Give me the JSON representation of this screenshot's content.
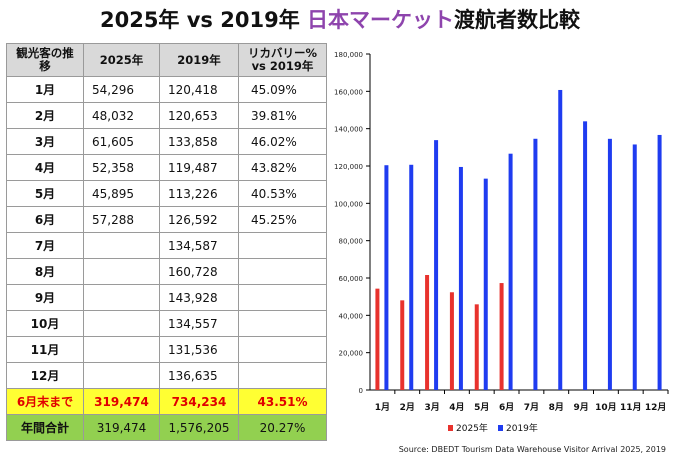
{
  "title": {
    "prefix": "2025年 vs 2019年 ",
    "highlight": "日本マーケット",
    "suffix": "渡航者数比較",
    "highlight_color": "#8e44ad"
  },
  "table": {
    "headers": [
      "観光客の推移",
      "2025年",
      "2019年",
      "リカバリー% vs 2019年"
    ],
    "rows": [
      [
        "1月",
        "54,296",
        "120,418",
        "45.09%"
      ],
      [
        "2月",
        "48,032",
        "120,653",
        "39.81%"
      ],
      [
        "3月",
        "61,605",
        "133,858",
        "46.02%"
      ],
      [
        "4月",
        "52,358",
        "119,487",
        "43.82%"
      ],
      [
        "5月",
        "45,895",
        "113,226",
        "40.53%"
      ],
      [
        "6月",
        "57,288",
        "126,592",
        "45.25%"
      ],
      [
        "7月",
        "",
        "134,587",
        ""
      ],
      [
        "8月",
        "",
        "160,728",
        ""
      ],
      [
        "9月",
        "",
        "143,928",
        ""
      ],
      [
        "10月",
        "",
        "134,557",
        ""
      ],
      [
        "11月",
        "",
        "131,536",
        ""
      ],
      [
        "12月",
        "",
        "136,635",
        ""
      ]
    ],
    "halfyear": [
      "6月末まで",
      "319,474",
      "734,234",
      "43.51%"
    ],
    "total": [
      "年間合計",
      "319,474",
      "1,576,205",
      "20.27%"
    ],
    "colors": {
      "halfyear_bg": "#ffff33",
      "halfyear_text": "#e00000",
      "total_bg": "#92d050",
      "header_bg": "#d9d9d9"
    }
  },
  "chart_data": {
    "type": "bar",
    "categories": [
      "1月",
      "2月",
      "3月",
      "4月",
      "5月",
      "6月",
      "7月",
      "8月",
      "9月",
      "10月",
      "11月",
      "12月"
    ],
    "series": [
      {
        "name": "2025年",
        "color": "#e8322d",
        "values": [
          54296,
          48032,
          61605,
          52358,
          45895,
          57288,
          null,
          null,
          null,
          null,
          null,
          null
        ]
      },
      {
        "name": "2019年",
        "color": "#1f3cf0",
        "values": [
          120418,
          120653,
          133858,
          119487,
          113226,
          126592,
          134587,
          160728,
          143928,
          134557,
          131536,
          136635
        ]
      }
    ],
    "ylim": [
      0,
      180000
    ],
    "yticks": [
      "0",
      "20,000",
      "40,000",
      "60,000",
      "80,000",
      "100,000",
      "120,000",
      "140,000",
      "160,000",
      "180,000"
    ],
    "grid": false,
    "legend": "bottom"
  },
  "source": "Source: DBEDT Tourism Data Warehouse Visitor Arrival 2025, 2019"
}
